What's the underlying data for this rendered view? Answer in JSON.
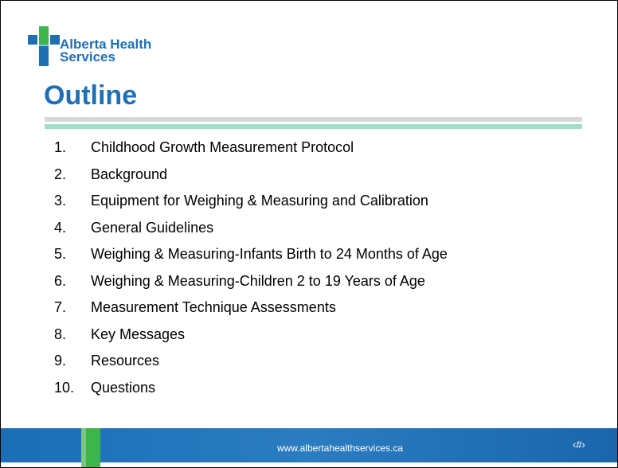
{
  "logo": {
    "line1": "Alberta Health",
    "line2": "Services"
  },
  "title": "Outline",
  "items": [
    {
      "number": "1.",
      "text": "Childhood Growth Measurement Protocol"
    },
    {
      "number": "2.",
      "text": "Background"
    },
    {
      "number": "3.",
      "text": "Equipment for Weighing & Measuring and Calibration"
    },
    {
      "number": "4.",
      "text": "General Guidelines"
    },
    {
      "number": "5.",
      "text": "Weighing & Measuring-Infants Birth to 24 Months of Age"
    },
    {
      "number": "6.",
      "text": "Weighing & Measuring-Children 2 to 19 Years of Age"
    },
    {
      "number": "7.",
      "text": "Measurement Technique Assessments"
    },
    {
      "number": "8.",
      "text": "Key Messages"
    },
    {
      "number": "9.",
      "text": "Resources"
    },
    {
      "number": "10.",
      "text": "Questions"
    }
  ],
  "footer": {
    "url": "www.albertahealthservices.ca",
    "page": "‹#›"
  }
}
